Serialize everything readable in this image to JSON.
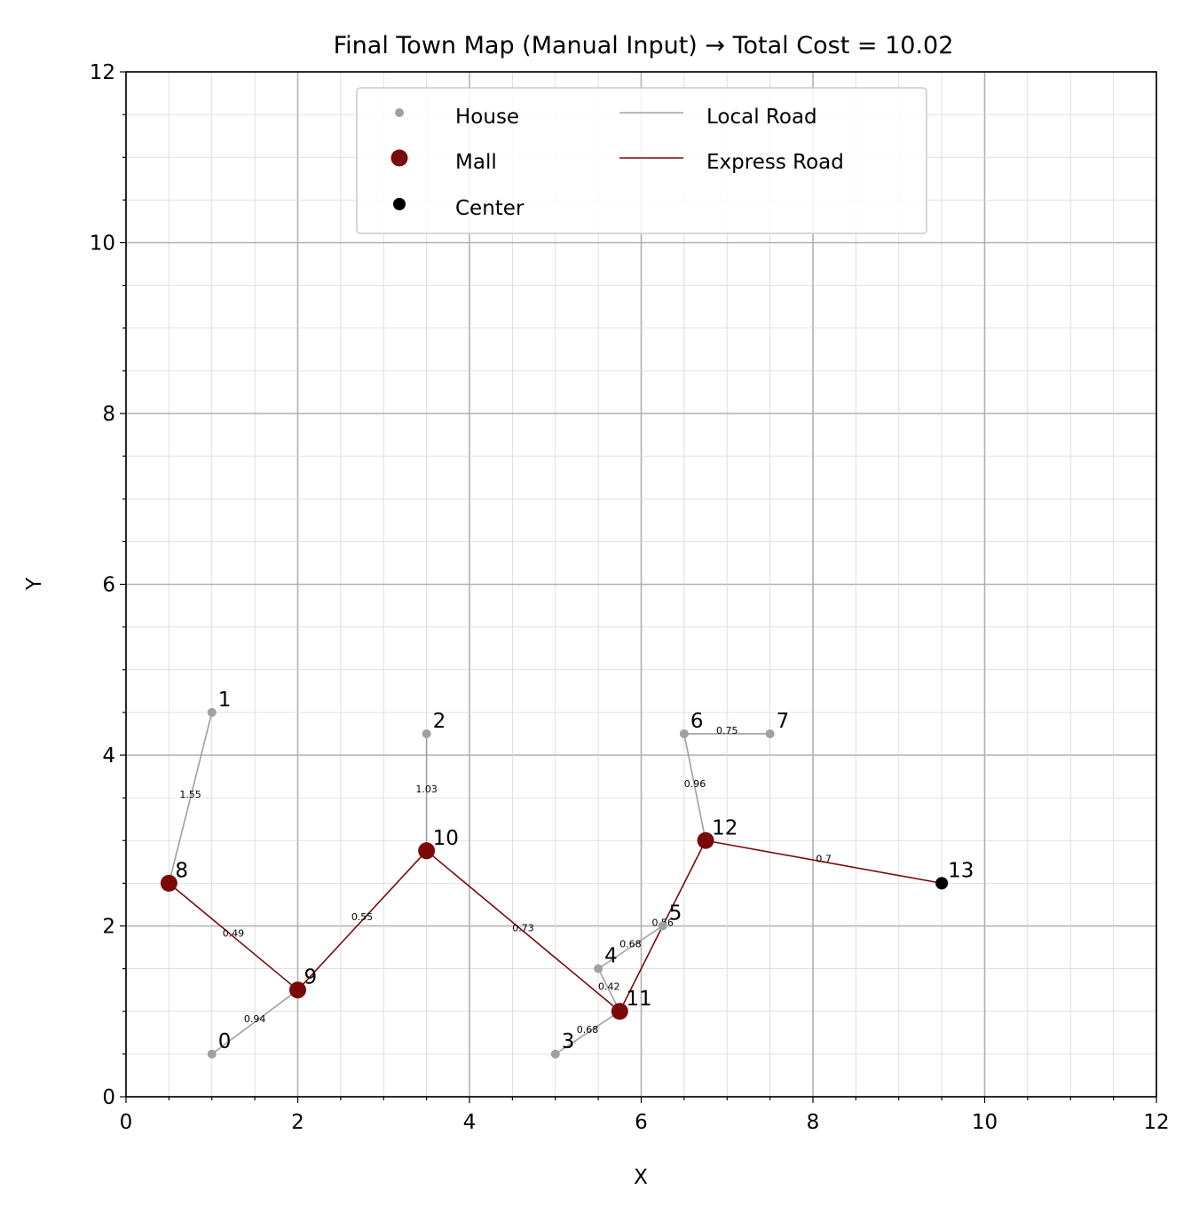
{
  "chart_data": {
    "type": "scatter",
    "title": "Final Town Map (Manual Input) → Total Cost = 10.02",
    "xlabel": "X",
    "ylabel": "Y",
    "xlim": [
      0,
      12
    ],
    "ylim": [
      0,
      12
    ],
    "major_ticks": [
      0,
      2,
      4,
      6,
      8,
      10,
      12
    ],
    "major_tick_labels": [
      "0",
      "2",
      "4",
      "6",
      "8",
      "10",
      "12"
    ],
    "minor_tick_step": 0.5,
    "grid": true,
    "legend_position": "top-center",
    "legend": {
      "house": "House",
      "mall": "Mall",
      "center": "Center",
      "local": "Local Road",
      "express": "Express Road"
    },
    "colors": {
      "house": "#a0a0a0",
      "mall": "#7a0a0a",
      "center": "#000000",
      "local": "#a0a0a0",
      "express": "#7a0a0a"
    },
    "nodes": [
      {
        "id": "0",
        "type": "house",
        "x": 1.0,
        "y": 0.5
      },
      {
        "id": "1",
        "type": "house",
        "x": 1.0,
        "y": 4.5
      },
      {
        "id": "2",
        "type": "house",
        "x": 3.5,
        "y": 4.25
      },
      {
        "id": "3",
        "type": "house",
        "x": 5.0,
        "y": 0.5
      },
      {
        "id": "4",
        "type": "house",
        "x": 5.5,
        "y": 1.5
      },
      {
        "id": "5",
        "type": "house",
        "x": 6.25,
        "y": 2.0
      },
      {
        "id": "6",
        "type": "house",
        "x": 6.5,
        "y": 4.25
      },
      {
        "id": "7",
        "type": "house",
        "x": 7.5,
        "y": 4.25
      },
      {
        "id": "8",
        "type": "mall",
        "x": 0.5,
        "y": 2.5
      },
      {
        "id": "9",
        "type": "mall",
        "x": 2.0,
        "y": 1.25
      },
      {
        "id": "10",
        "type": "mall",
        "x": 3.5,
        "y": 2.88
      },
      {
        "id": "11",
        "type": "mall",
        "x": 5.75,
        "y": 1.0
      },
      {
        "id": "12",
        "type": "mall",
        "x": 6.75,
        "y": 3.0
      },
      {
        "id": "13",
        "type": "center",
        "x": 9.5,
        "y": 2.5
      }
    ],
    "edges": [
      {
        "from": "1",
        "to": "8",
        "type": "local",
        "label": "1.55"
      },
      {
        "from": "0",
        "to": "9",
        "type": "local",
        "label": "0.94"
      },
      {
        "from": "2",
        "to": "10",
        "type": "local",
        "label": "1.03"
      },
      {
        "from": "3",
        "to": "11",
        "type": "local",
        "label": "0.68"
      },
      {
        "from": "4",
        "to": "11",
        "type": "local",
        "label": "0.42"
      },
      {
        "from": "4",
        "to": "5",
        "type": "local",
        "label": "0.68"
      },
      {
        "from": "6",
        "to": "12",
        "type": "local",
        "label": "0.96"
      },
      {
        "from": "6",
        "to": "7",
        "type": "local",
        "label": "0.75"
      },
      {
        "from": "8",
        "to": "9",
        "type": "express",
        "label": "0.49"
      },
      {
        "from": "9",
        "to": "10",
        "type": "express",
        "label": "0.55"
      },
      {
        "from": "10",
        "to": "11",
        "type": "express",
        "label": "0.73"
      },
      {
        "from": "11",
        "to": "12",
        "type": "express",
        "label": "0.56"
      },
      {
        "from": "12",
        "to": "13",
        "type": "express",
        "label": "0.7"
      }
    ]
  }
}
